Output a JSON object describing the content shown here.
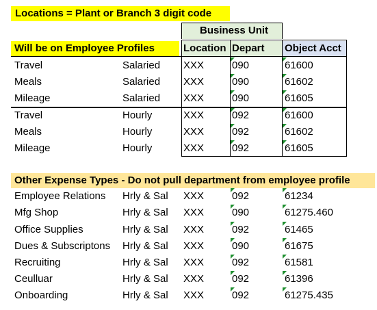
{
  "title": "Locations = Plant or Branch 3 digit code",
  "business_unit": "Business Unit",
  "section1_title": "Will be on Employee Profiles",
  "headers": {
    "location": "Location",
    "depart": "Depart",
    "object": "Object Acct"
  },
  "rows1": [
    [
      "Travel",
      "Salaried",
      "XXX",
      "090",
      "61600"
    ],
    [
      "Meals",
      "Salaried",
      "XXX",
      "090",
      "61602"
    ],
    [
      "Mileage",
      "Salaried",
      "XXX",
      "090",
      "61605"
    ],
    [
      "Travel",
      "Hourly",
      "XXX",
      "092",
      "61600"
    ],
    [
      "Meals",
      "Hourly",
      "XXX",
      "092",
      "61602"
    ],
    [
      "Mileage",
      "Hourly",
      "XXX",
      "092",
      "61605"
    ]
  ],
  "section2_title": "Other Expense Types - Do not pull department from employee profile",
  "rows2": [
    [
      "Employee Relations",
      "Hrly & Sal",
      "XXX",
      "092",
      "61234"
    ],
    [
      "Mfg Shop",
      "Hrly & Sal",
      "XXX",
      "090",
      "61275.460"
    ],
    [
      "Office Supplies",
      "Hrly & Sal",
      "XXX",
      "092",
      "61465"
    ],
    [
      "Dues & Subscriptons",
      "Hrly & Sal",
      "XXX",
      "090",
      "61675"
    ],
    [
      "Recruiting",
      "Hrly & Sal",
      "XXX",
      "092",
      "61581"
    ],
    [
      "Ceulluar",
      "Hrly & Sal",
      "XXX",
      "092",
      "61396"
    ],
    [
      "Onboarding",
      "Hrly & Sal",
      "XXX",
      "092",
      "61275.435"
    ]
  ],
  "colors": {
    "yellow": "#ffff00",
    "green": "#e2efda",
    "blue": "#d9e1f2",
    "orange": "#ffe699"
  }
}
